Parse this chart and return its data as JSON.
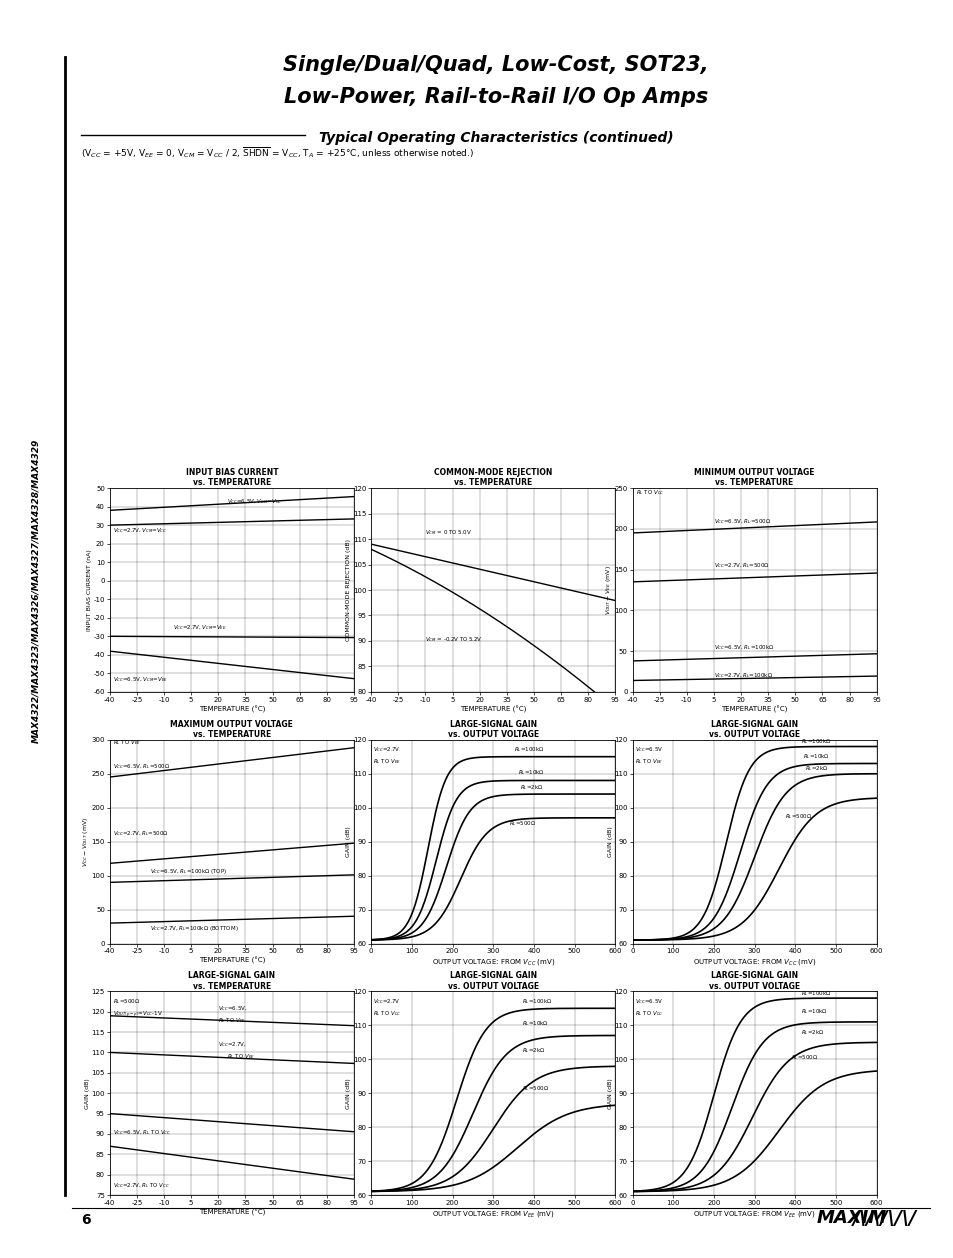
{
  "page_title_line1": "Single/Dual/Quad, Low-Cost, SOT23,",
  "page_title_line2": "Low-Power, Rail-to-Rail I/O Op Amps",
  "section_title": "Typical Operating Characteristics (continued)",
  "subtitle": "(V_{CC} = +5V, V_{EE} = 0, V_{CM} = V_{CC} / 2, SHDN = V_{CC}, T_A = +25°C, unless otherwise noted.)",
  "side_label": "MAX4322/MAX4323/MAX4326/MAX4327/MAX4328/MAX4329",
  "page_number": "6",
  "background": "#ffffff"
}
